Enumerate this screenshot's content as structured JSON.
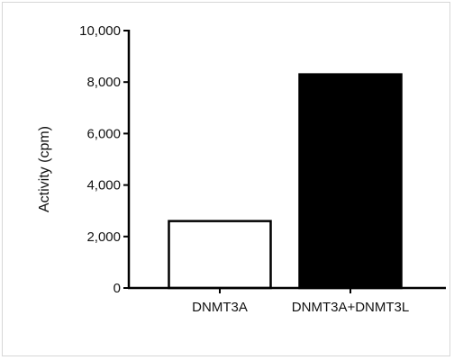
{
  "chart_data": {
    "type": "bar",
    "categories": [
      "DNMT3A",
      "DNMT3A+DNMT3L"
    ],
    "values": [
      2600,
      8300
    ],
    "bar_fills": [
      "#ffffff",
      "#000000"
    ],
    "bar_strokes": [
      "#000000",
      "#000000"
    ],
    "title": "",
    "xlabel": "",
    "ylabel": "Activity (cpm)",
    "ylim": [
      0,
      10000
    ],
    "yticks": [
      0,
      2000,
      4000,
      6000,
      8000,
      10000
    ],
    "ytick_labels": [
      "0",
      "2,000",
      "4,000",
      "6,000",
      "8,000",
      "10,000"
    ],
    "grid": false,
    "legend": "none"
  }
}
